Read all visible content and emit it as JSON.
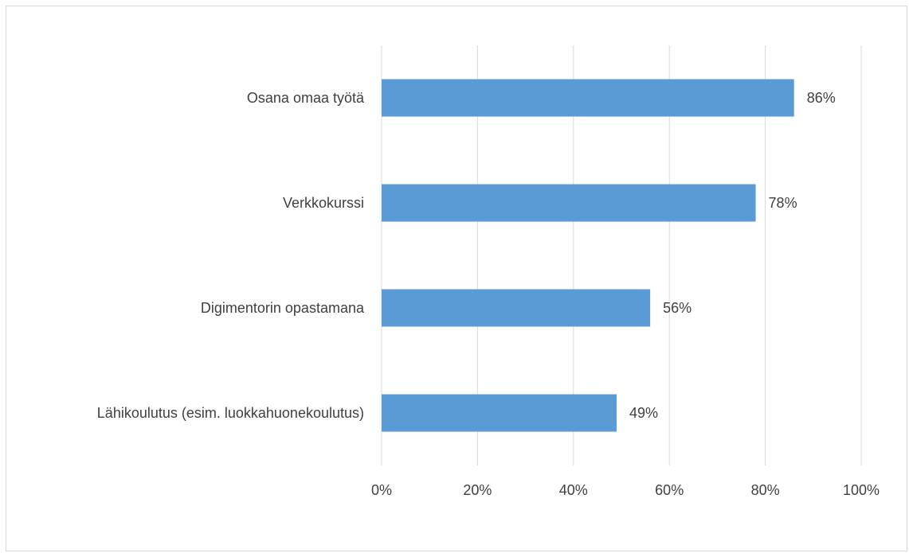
{
  "chart_data": {
    "type": "bar",
    "orientation": "horizontal",
    "title": "",
    "xlabel": "",
    "ylabel": "",
    "categories": [
      "Osana omaa työtä",
      "Verkkokurssi",
      "Digimentorin opastamana",
      "Lähikoulutus (esim. luokkahuonekoulutus)"
    ],
    "values": [
      86,
      78,
      56,
      49
    ],
    "data_labels": [
      "86%",
      "78%",
      "56%",
      "49%"
    ],
    "xlim": [
      0,
      100
    ],
    "x_ticks": [
      0,
      20,
      40,
      60,
      80,
      100
    ],
    "x_tick_labels": [
      "0%",
      "20%",
      "40%",
      "60%",
      "80%",
      "100%"
    ],
    "grid": true,
    "legend": "none",
    "colors": {
      "bar": "#5b9bd5",
      "grid": "#d9d9d9",
      "text": "#404040",
      "border": "#d9d9d9"
    }
  }
}
